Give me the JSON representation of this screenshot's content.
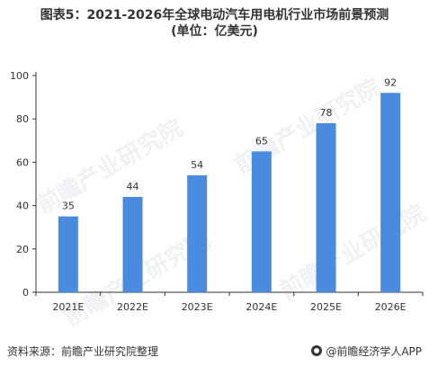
{
  "title": {
    "line1": "图表5：2021-2026年全球电动汽车用电机行业市场前景预测",
    "line2": "(单位：亿美元)"
  },
  "watermark": "前瞻产业研究院",
  "footer": {
    "source": "资料来源：前瞻产业研究院整理",
    "brand": "@前瞻经济学人APP"
  },
  "colors": {
    "bar": "#4a8be0",
    "axis": "#333333",
    "grid": "#e6e6e6"
  },
  "chart_data": {
    "type": "bar",
    "categories": [
      "2021E",
      "2022E",
      "2023E",
      "2024E",
      "2025E",
      "2026E"
    ],
    "values": [
      35,
      44,
      54,
      65,
      78,
      92
    ],
    "title": "图表5：2021-2026年全球电动汽车用电机行业市场前景预测",
    "subtitle": "(单位：亿美元)",
    "xlabel": "",
    "ylabel": "",
    "ylim": [
      0,
      100
    ],
    "yticks": [
      0,
      20,
      40,
      60,
      80,
      100
    ],
    "data_labels": true,
    "grid": false,
    "legend": "none"
  }
}
